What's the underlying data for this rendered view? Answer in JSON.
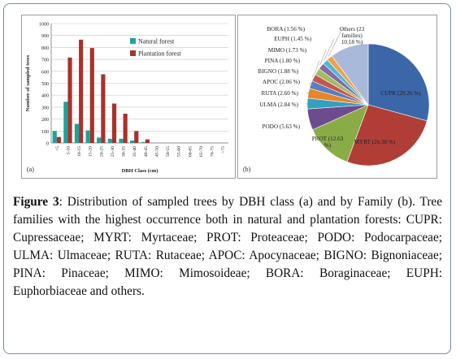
{
  "colors": {
    "frame": "#6b8fb7",
    "natural": "#1ba39a",
    "plantation": "#a8322c",
    "grid": "#c8c8c8"
  },
  "chart_data": [
    {
      "type": "bar",
      "panel_label": "(a)",
      "xlabel": "DBH Class (cm)",
      "ylabel": "Number of sampled trees",
      "ylim": [
        0,
        1000
      ],
      "yticks": [
        0,
        100,
        200,
        300,
        400,
        500,
        600,
        700,
        800,
        900,
        1000
      ],
      "grid": true,
      "legend": "top-right",
      "categories": [
        "<5",
        "5-10",
        "10-15",
        "15-20",
        "20-25",
        "25-30",
        "30-35",
        "35-40",
        "40-45",
        "45-50",
        "50-55",
        "55-60",
        "60-65",
        "65-70",
        "70-75",
        ">75"
      ],
      "series": [
        {
          "name": "Natural forest",
          "values": [
            100,
            345,
            160,
            105,
            45,
            35,
            35,
            20,
            8,
            0,
            0,
            0,
            0,
            0,
            0,
            0
          ]
        },
        {
          "name": "Plantation forest",
          "values": [
            50,
            715,
            865,
            795,
            575,
            330,
            245,
            100,
            30,
            0,
            0,
            0,
            0,
            0,
            0,
            0
          ]
        }
      ]
    },
    {
      "type": "pie",
      "panel_label": "(b)",
      "slices": [
        {
          "label": "CUPR (29.26 %)",
          "value": 29.26,
          "color": "#3b67a8"
        },
        {
          "label": "MYRT (26.38 %)",
          "value": 26.38,
          "color": "#b03e37"
        },
        {
          "label": "PROT (12.63 %)",
          "value": 12.63,
          "color": "#8aac47"
        },
        {
          "label": "PODO (5.63 %)",
          "value": 5.63,
          "color": "#6d4c8e"
        },
        {
          "label": "ULMA (2.84 %)",
          "value": 2.84,
          "color": "#33a0bf"
        },
        {
          "label": "RUTA (2.60 %)",
          "value": 2.6,
          "color": "#e6852a"
        },
        {
          "label": "APOC (2.06 %)",
          "value": 2.06,
          "color": "#5a7fbd"
        },
        {
          "label": "BIGNO (1.88 %)",
          "value": 1.88,
          "color": "#c65450"
        },
        {
          "label": "PINA (1.80 %)",
          "value": 1.8,
          "color": "#9fbf5e"
        },
        {
          "label": "MIMO (1.73 %)",
          "value": 1.73,
          "color": "#8669a8"
        },
        {
          "label": "EUPH (1.45 %)",
          "value": 1.45,
          "color": "#4cbad6"
        },
        {
          "label": "BORA (1.56 %)",
          "value": 1.56,
          "color": "#f3a04a"
        },
        {
          "label": "Others (23 families) 10.18 %)",
          "value": 10.18,
          "color": "#a9b9da"
        }
      ]
    }
  ],
  "caption": {
    "figure_label": "Figure 3",
    "text": ": Distribution of sampled trees by DBH class (a) and by Family (b). Tree families with the highest occurrence both in natural and plantation forests: CUPR: Cupressaceae; MYRT: Myrtaceae; PROT: Proteaceae; PODO: Podocarpaceae; ULMA: Ulmaceae; RUTA: Rutaceae; APOC: Apocynaceae; BIGNO: Bignoniaceae; PINA: Pinaceae; MIMO: Mimosoideae; BORA: Boraginaceae; EUPH: Euphorbiaceae and others."
  }
}
